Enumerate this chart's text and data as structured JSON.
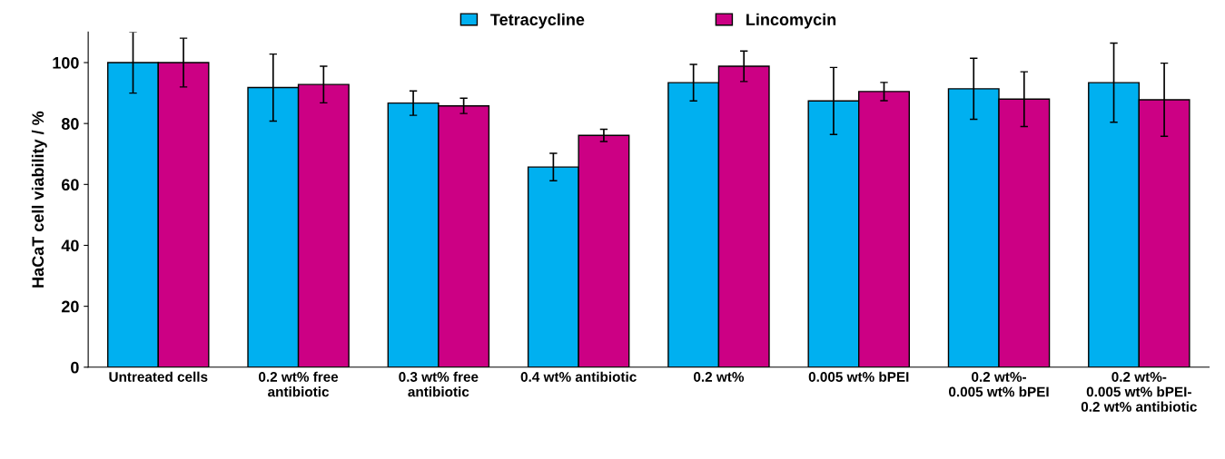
{
  "chart_data": {
    "type": "bar",
    "ylabel": "HaCaT cell viability / %",
    "categories": [
      "Untreated cells",
      "0.2 wt% free\nantibiotic",
      "0.3 wt% free\nantibiotic",
      "0.4 wt% antibiotic",
      "0.2 wt%",
      "0.005 wt% bPEI",
      "0.2 wt%-\n0.005 wt% bPEI",
      "0.2 wt%-\n0.005 wt% bPEI-\n0.2 wt% antibiotic"
    ],
    "series": [
      {
        "name": "Tetracycline",
        "color": "#00b0f0",
        "values": [
          100,
          91.8,
          86.7,
          65.7,
          93.4,
          87.4,
          91.4,
          93.4
        ],
        "errors": [
          10,
          11,
          4,
          4.5,
          6,
          11,
          10,
          13
        ]
      },
      {
        "name": "Lincomycin",
        "color": "#cc0084",
        "values": [
          100,
          92.8,
          85.8,
          76.1,
          98.8,
          90.5,
          88,
          87.8
        ],
        "errors": [
          8,
          6,
          2.5,
          2,
          5,
          3,
          9,
          12
        ]
      }
    ],
    "ylim": [
      0,
      110
    ],
    "yticks": [
      0,
      20,
      40,
      60,
      80,
      100
    ],
    "grid": false,
    "legend": "top"
  }
}
